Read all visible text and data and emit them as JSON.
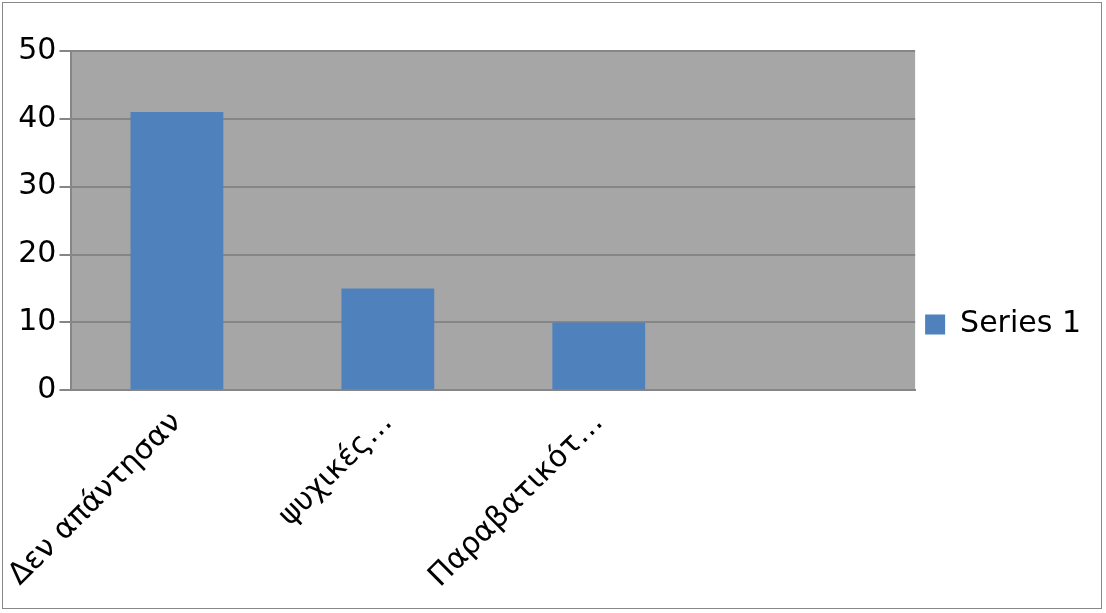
{
  "chart_data": {
    "type": "bar",
    "categories": [
      "Δεν απάντησαν",
      "ψυχικές…",
      "Παραβατικότ…",
      null
    ],
    "series": [
      {
        "name": "Series 1",
        "color": "#4f81bd",
        "values": [
          41,
          15,
          10,
          null
        ]
      }
    ],
    "ylim": [
      0,
      50
    ],
    "yticks": [
      0,
      10,
      20,
      30,
      40,
      50
    ],
    "grid": "y",
    "legend": "right"
  }
}
